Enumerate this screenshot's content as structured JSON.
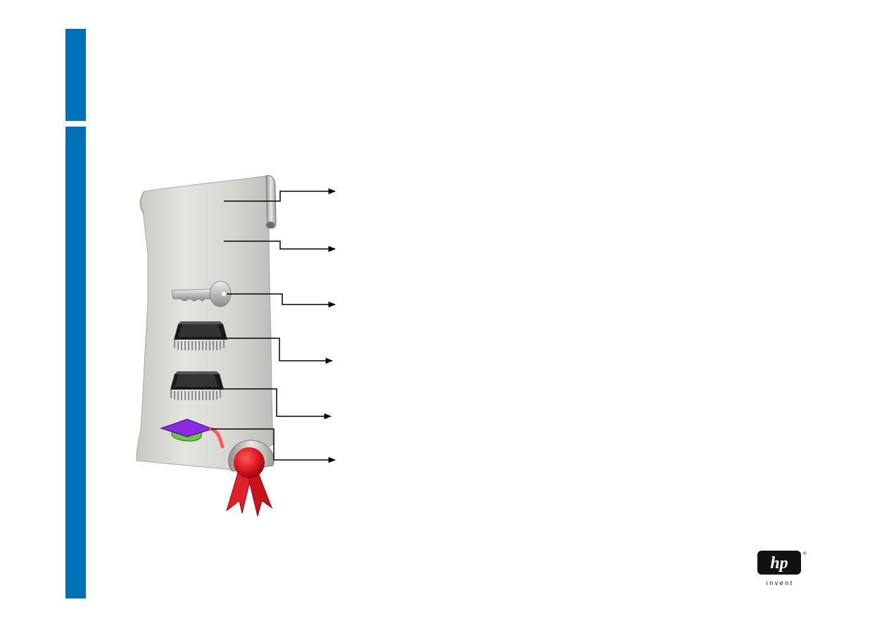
{
  "slide": {
    "accent_color": "#0071b9",
    "illustration": {
      "scroll_color": "#d8d8d4",
      "ribbon_color": "#e0202a",
      "cap_color": "#8a2be2",
      "cap_band_color": "#6cc83c",
      "connector_count": 6,
      "icons": [
        "key-icon",
        "microchip-icon",
        "microchip-icon",
        "graduation-cap-icon",
        "ribbon-seal-icon"
      ]
    },
    "logo": {
      "brand": "hp",
      "tagline": "i n v e n t",
      "registered_mark": "®"
    }
  }
}
